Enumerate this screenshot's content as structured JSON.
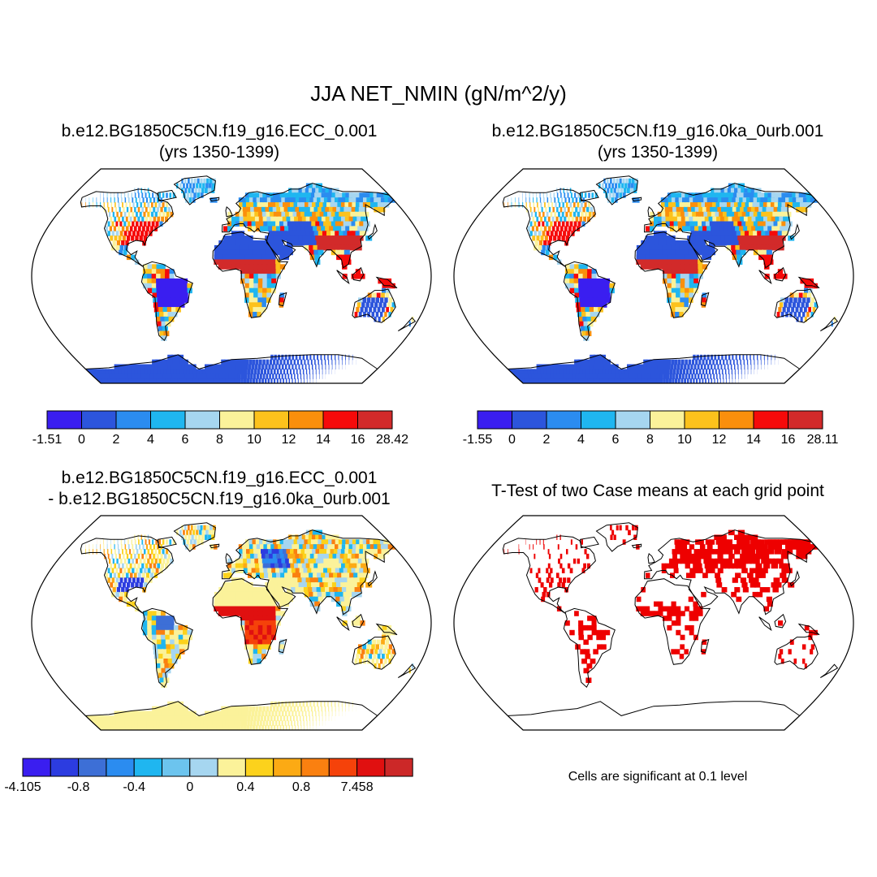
{
  "title": "JJA NET_NMIN (gN/m^2/y)",
  "panels": [
    {
      "title_line1": "b.e12.BG1850C5CN.f19_g16.ECC_0.001",
      "title_line2": "(yrs 1350-1399)",
      "kind": "field"
    },
    {
      "title_line1": "b.e12.BG1850C5CN.f19_g16.0ka_0urb.001",
      "title_line2": "(yrs 1350-1399)",
      "kind": "field"
    },
    {
      "title_line1": "b.e12.BG1850C5CN.f19_g16.ECC_0.001",
      "title_line2": "- b.e12.BG1850C5CN.f19_g16.0ka_0urb.001",
      "kind": "difference"
    },
    {
      "title_line1": "T-Test of two Case means at each grid point",
      "kind": "significance",
      "significant_color": "#ee0000"
    }
  ],
  "colorbars": [
    {
      "labels": [
        "-1.51",
        "0",
        "2",
        "4",
        "6",
        "8",
        "10",
        "12",
        "14",
        "16",
        "28.42"
      ],
      "colors": [
        "#3a1ef0",
        "#2c55dc",
        "#2b8cf0",
        "#1fb6f0",
        "#a6d6f0",
        "#fbf29a",
        "#fcc21c",
        "#fa8f0c",
        "#f60a0a",
        "#d22a2a"
      ]
    },
    {
      "labels": [
        "-1.55",
        "0",
        "2",
        "4",
        "6",
        "8",
        "10",
        "12",
        "14",
        "16",
        "28.11"
      ],
      "colors": [
        "#3a1ef0",
        "#2c55dc",
        "#2b8cf0",
        "#1fb6f0",
        "#a6d6f0",
        "#fbf29a",
        "#fcc21c",
        "#fa8f0c",
        "#f60a0a",
        "#d22a2a"
      ]
    },
    {
      "labels": [
        "-4.105",
        "",
        "-0.8",
        "",
        "-0.4",
        "",
        "0",
        "",
        "0.4",
        "",
        "0.8",
        "",
        "7.458"
      ],
      "colors": [
        "#3a1ef0",
        "#2c3ce0",
        "#3d6fd6",
        "#2b8cf0",
        "#1fb6f0",
        "#6cc4ee",
        "#a6d6f0",
        "#fbf29a",
        "#fcd21c",
        "#fcaa14",
        "#fa8010",
        "#f5420a",
        "#e01010",
        "#cc2828"
      ]
    }
  ],
  "significance_note": "Cells are significant at 0.1 level",
  "map_colors": {
    "ocean": "#ffffff",
    "coast": "#000000"
  }
}
